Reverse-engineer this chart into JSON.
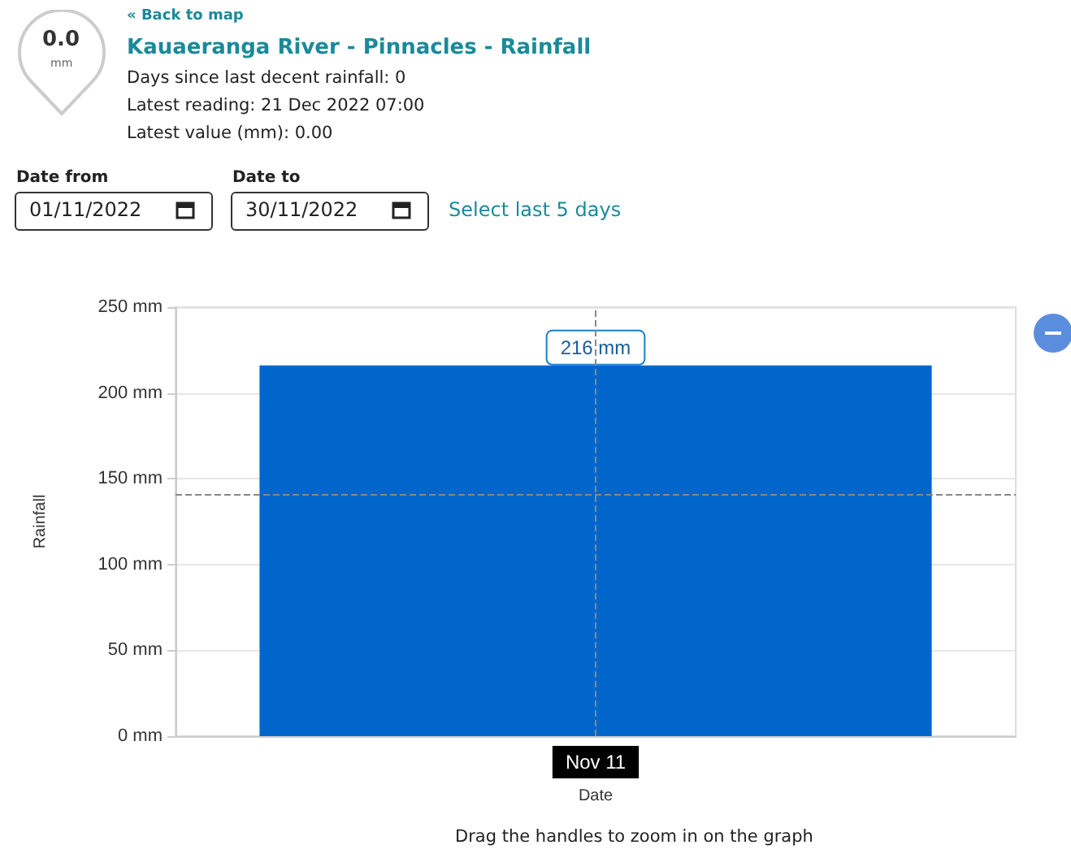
{
  "chart_data": {
    "type": "bar",
    "title": "Kauaeranga River - Pinnacles - Rainfall",
    "xlabel": "Date",
    "ylabel": "Rainfall",
    "categories": [
      "Nov 11"
    ],
    "values": [
      216
    ],
    "value_labels": [
      "216 mm"
    ],
    "color": "#0066cc",
    "ylim": [
      0,
      250
    ],
    "yticks": [
      {
        "value": 0,
        "label": "0 mm"
      },
      {
        "value": 50,
        "label": "50 mm"
      },
      {
        "value": 100,
        "label": "100 mm"
      },
      {
        "value": 150,
        "label": "150 mm"
      },
      {
        "value": 200,
        "label": "200 mm"
      },
      {
        "value": 250,
        "label": "250 mm"
      }
    ],
    "grid": "y",
    "ref_lines": [
      {
        "axis": "y",
        "value": 141,
        "label": null,
        "line_style": "dashed",
        "color": "#888888"
      },
      {
        "axis": "x",
        "value": "Nov 11",
        "label": null,
        "line_style": "dashed",
        "color": "#888888"
      }
    ],
    "annotations": [
      "« Back to map",
      "Days since last decent rainfall: 0",
      "Latest reading: 21 Dec 2022 07:00",
      "Latest value (mm): 0.00",
      "0.0",
      "mm",
      "Date from",
      "Date to",
      "01/11/2022",
      "30/11/2022",
      "Select last 5 days",
      "Drag the handles to zoom in on the graph"
    ]
  }
}
